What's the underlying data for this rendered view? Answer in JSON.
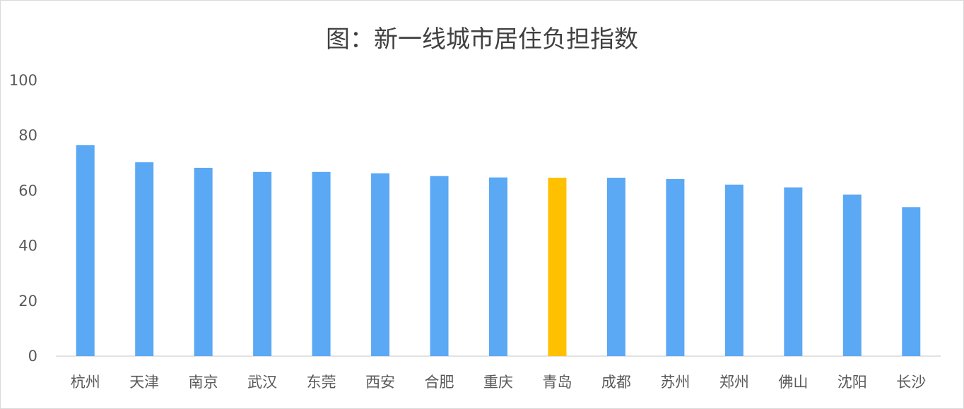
{
  "chart_data": {
    "type": "bar",
    "title": "图：新一线城市居住负担指数",
    "xlabel": "",
    "ylabel": "",
    "categories": [
      "杭州",
      "天津",
      "南京",
      "武汉",
      "东莞",
      "西安",
      "合肥",
      "重庆",
      "青岛",
      "成都",
      "苏州",
      "郑州",
      "佛山",
      "沈阳",
      "长沙"
    ],
    "values": [
      76.5,
      70.3,
      68.3,
      66.8,
      66.8,
      66.3,
      65.3,
      64.8,
      64.7,
      64.7,
      64.2,
      62.2,
      61.2,
      58.6,
      54.0
    ],
    "ylim": [
      0,
      100
    ],
    "yticks": [
      0,
      20,
      40,
      60,
      80,
      100
    ],
    "grid": false,
    "legend": "none",
    "colors": {
      "default_bar": "#5BA8F5",
      "highlight_bar": "#FFC000",
      "axis_line": "#d9d9d9"
    },
    "highlight_category": "青岛"
  }
}
